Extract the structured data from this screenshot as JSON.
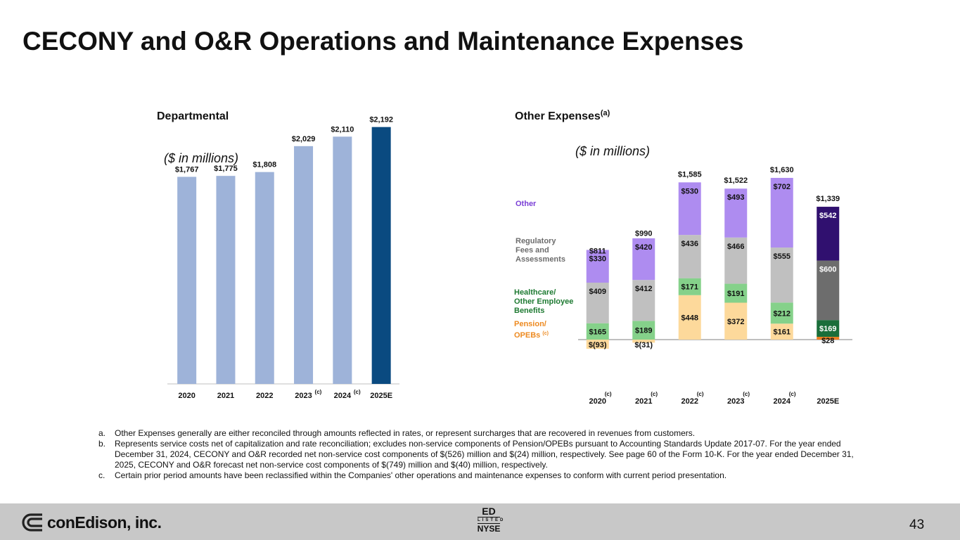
{
  "header": {
    "title": "CECONY and O&R Operations and Maintenance Expenses"
  },
  "colors": {
    "dept_bar": "#9eb3d9",
    "dept_bar_estimate": "#0a4a80",
    "other": "#ae8cf0",
    "regulatory": "#c0c0c0",
    "healthcare": "#85d18a",
    "pension": "#fdd99b",
    "estimate_other": "#30106f",
    "estimate_regulatory": "#6d6d6d",
    "estimate_healthcare": "#1a6e3a",
    "estimate_pension": "#ed7d20"
  },
  "chart_data": [
    {
      "type": "bar",
      "title": "Departmental",
      "units": "($ in millions)",
      "categories": [
        "2020",
        "2021",
        "2022",
        "2023",
        "2024",
        "2025E"
      ],
      "category_notes": [
        "",
        "",
        "",
        "(c)",
        "(c)",
        ""
      ],
      "values": [
        1767,
        1775,
        1808,
        2029,
        2110,
        2192
      ],
      "value_labels": [
        "$1,767",
        "$1,775",
        "$1,808",
        "$2,029",
        "$2,110",
        "$2,192"
      ],
      "estimate_index": 5,
      "xlabel": "",
      "ylabel": "",
      "ylim": [
        0,
        2400
      ],
      "grid": false
    },
    {
      "type": "bar",
      "stacked": true,
      "title": "Other Expenses",
      "title_note": "(a)",
      "units": "($ in millions)",
      "categories": [
        "2020",
        "2021",
        "2022",
        "2023",
        "2024",
        "2025E"
      ],
      "category_notes": [
        "(c)",
        "(c)",
        "(c)",
        "(c)",
        "(c)",
        ""
      ],
      "series": [
        {
          "name": "Pension/ OPEBs",
          "note": "(c)",
          "values": [
            -93,
            -31,
            448,
            372,
            161,
            28
          ],
          "labels": [
            "$(93)",
            "$(31)",
            "$448",
            "$372",
            "$161",
            "$28"
          ]
        },
        {
          "name": "Healthcare/ Other Employee Benefits",
          "values": [
            165,
            189,
            171,
            191,
            212,
            169
          ],
          "labels": [
            "$165",
            "$189",
            "$171",
            "$191",
            "$212",
            "$169"
          ]
        },
        {
          "name": "Regulatory Fees and Assessments",
          "values": [
            409,
            412,
            436,
            466,
            555,
            600
          ],
          "labels": [
            "$409",
            "$412",
            "$436",
            "$466",
            "$555",
            "$600"
          ]
        },
        {
          "name": "Other",
          "values": [
            330,
            420,
            530,
            493,
            702,
            542
          ],
          "labels": [
            "$330",
            "$420",
            "$530",
            "$493",
            "$702",
            "$542"
          ]
        }
      ],
      "totals": [
        811,
        990,
        1585,
        1522,
        1630,
        1339
      ],
      "total_labels": [
        "$811",
        "$990",
        "$1,585",
        "$1,522",
        "$1,630",
        "$1,339"
      ],
      "estimate_index": 5,
      "xlabel": "",
      "ylabel": "",
      "ylim": [
        -150,
        1700
      ],
      "grid": false
    }
  ],
  "legend": {
    "other": "Other",
    "regulatory": [
      "Regulatory",
      "Fees and",
      "Assessments"
    ],
    "healthcare": [
      "Healthcare/",
      "Other Employee",
      "Benefits"
    ],
    "pension": [
      "Pension/",
      "OPEBs"
    ],
    "pension_note": "(c)"
  },
  "footnotes": [
    {
      "letter": "a.",
      "text": "Other Expenses generally are either reconciled through amounts reflected in rates, or represent surcharges that are recovered in revenues from customers."
    },
    {
      "letter": "b.",
      "text": "Represents service costs net of capitalization and rate reconciliation; excludes non-service components of Pension/OPEBs pursuant to Accounting Standards Update 2017-07. For the year ended December 31, 2024, CECONY and O&R recorded net non-service cost components of $(526) million and $(24) million, respectively. See page 60 of the Form 10-K. For the year ended December 31, 2025, CECONY and O&R forecast net non-service cost components of $(749) million and $(40) million, respectively."
    },
    {
      "letter": "c.",
      "text": "Certain prior period amounts have been reclassified within the Companies' other operations and maintenance expenses to conform with current period presentation."
    }
  ],
  "footer": {
    "logo_text": "conEdison, inc.",
    "ticker": "ED",
    "listed": "LISTED",
    "exchange": "NYSE",
    "page_number": "43"
  }
}
